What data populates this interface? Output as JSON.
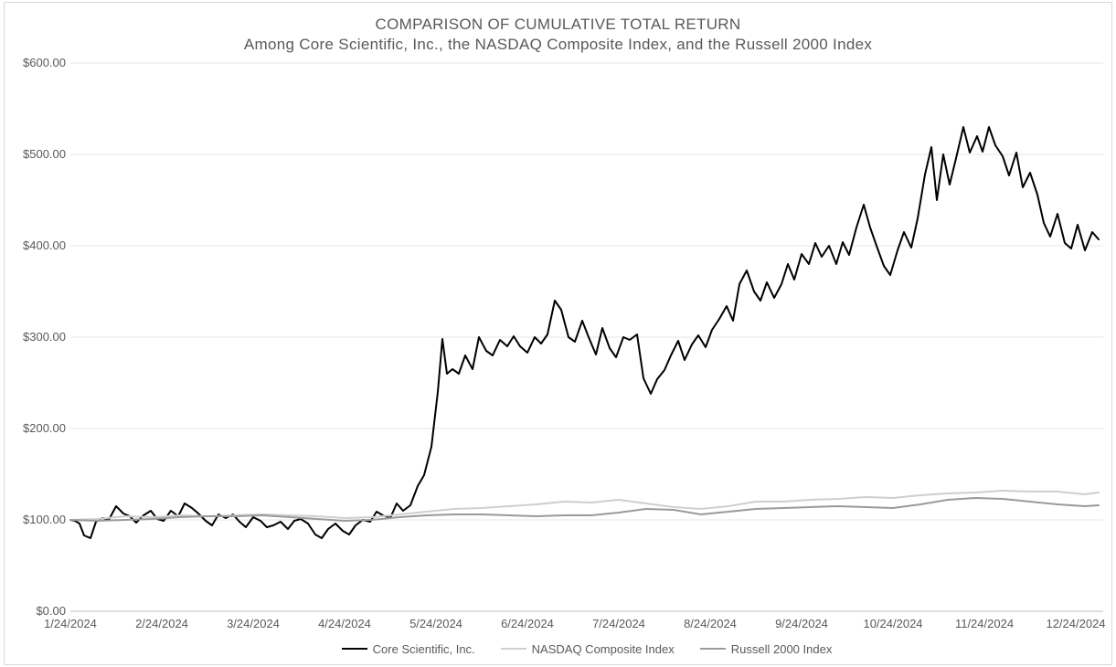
{
  "chart": {
    "type": "line",
    "title": "COMPARISON OF CUMULATIVE TOTAL RETURN",
    "subtitle": "Among Core Scientific, Inc., the NASDAQ Composite Index, and the Russell 2000 Index",
    "background_color": "#ffffff",
    "grid_color": "#e6e6e6",
    "axis_color": "#bfbfbf",
    "text_color": "#595959",
    "title_fontsize": 17,
    "label_fontsize": 13,
    "legend_fontsize": 13,
    "x": {
      "ticks": [
        "1/24/2024",
        "2/24/2024",
        "3/24/2024",
        "4/24/2024",
        "5/24/2024",
        "6/24/2024",
        "7/24/2024",
        "8/24/2024",
        "9/24/2024",
        "10/24/2024",
        "11/24/2024",
        "12/24/2024"
      ],
      "min_index": 0,
      "max_index": 11.3
    },
    "y": {
      "min": 0,
      "max": 600,
      "step": 100,
      "tick_format_prefix": "$",
      "tick_format_suffix": ".00",
      "ticks": [
        0,
        100,
        200,
        300,
        400,
        500,
        600
      ]
    },
    "series": [
      {
        "name": "Core Scientific, Inc.",
        "color": "#000000",
        "width": 2.0,
        "points": [
          [
            0.0,
            100
          ],
          [
            0.05,
            99
          ],
          [
            0.1,
            96
          ],
          [
            0.15,
            83
          ],
          [
            0.22,
            80
          ],
          [
            0.28,
            98
          ],
          [
            0.35,
            102
          ],
          [
            0.42,
            100
          ],
          [
            0.5,
            115
          ],
          [
            0.58,
            107
          ],
          [
            0.65,
            104
          ],
          [
            0.72,
            97
          ],
          [
            0.8,
            105
          ],
          [
            0.88,
            110
          ],
          [
            0.95,
            101
          ],
          [
            1.02,
            99
          ],
          [
            1.1,
            110
          ],
          [
            1.18,
            104
          ],
          [
            1.25,
            118
          ],
          [
            1.33,
            113
          ],
          [
            1.4,
            107
          ],
          [
            1.48,
            99
          ],
          [
            1.55,
            94
          ],
          [
            1.62,
            106
          ],
          [
            1.7,
            102
          ],
          [
            1.78,
            106
          ],
          [
            1.85,
            98
          ],
          [
            1.92,
            92
          ],
          [
            2.0,
            103
          ],
          [
            2.08,
            99
          ],
          [
            2.15,
            92
          ],
          [
            2.22,
            94
          ],
          [
            2.3,
            98
          ],
          [
            2.38,
            90
          ],
          [
            2.45,
            99
          ],
          [
            2.52,
            101
          ],
          [
            2.6,
            96
          ],
          [
            2.68,
            84
          ],
          [
            2.75,
            80
          ],
          [
            2.82,
            90
          ],
          [
            2.9,
            96
          ],
          [
            2.98,
            88
          ],
          [
            3.05,
            84
          ],
          [
            3.12,
            94
          ],
          [
            3.2,
            100
          ],
          [
            3.28,
            98
          ],
          [
            3.35,
            109
          ],
          [
            3.42,
            105
          ],
          [
            3.5,
            102
          ],
          [
            3.57,
            118
          ],
          [
            3.64,
            110
          ],
          [
            3.72,
            116
          ],
          [
            3.8,
            137
          ],
          [
            3.87,
            149
          ],
          [
            3.95,
            180
          ],
          [
            4.02,
            240
          ],
          [
            4.07,
            298
          ],
          [
            4.12,
            260
          ],
          [
            4.18,
            265
          ],
          [
            4.25,
            260
          ],
          [
            4.32,
            280
          ],
          [
            4.4,
            265
          ],
          [
            4.47,
            300
          ],
          [
            4.55,
            285
          ],
          [
            4.62,
            280
          ],
          [
            4.7,
            297
          ],
          [
            4.78,
            290
          ],
          [
            4.85,
            301
          ],
          [
            4.92,
            290
          ],
          [
            5.0,
            283
          ],
          [
            5.08,
            300
          ],
          [
            5.15,
            293
          ],
          [
            5.22,
            303
          ],
          [
            5.3,
            340
          ],
          [
            5.37,
            330
          ],
          [
            5.45,
            300
          ],
          [
            5.52,
            295
          ],
          [
            5.6,
            318
          ],
          [
            5.67,
            300
          ],
          [
            5.75,
            281
          ],
          [
            5.82,
            310
          ],
          [
            5.9,
            288
          ],
          [
            5.97,
            278
          ],
          [
            6.05,
            300
          ],
          [
            6.12,
            297
          ],
          [
            6.2,
            303
          ],
          [
            6.27,
            255
          ],
          [
            6.35,
            238
          ],
          [
            6.42,
            254
          ],
          [
            6.5,
            264
          ],
          [
            6.57,
            280
          ],
          [
            6.65,
            296
          ],
          [
            6.72,
            275
          ],
          [
            6.8,
            292
          ],
          [
            6.87,
            302
          ],
          [
            6.95,
            289
          ],
          [
            7.02,
            308
          ],
          [
            7.1,
            320
          ],
          [
            7.18,
            334
          ],
          [
            7.25,
            318
          ],
          [
            7.32,
            358
          ],
          [
            7.4,
            373
          ],
          [
            7.48,
            350
          ],
          [
            7.55,
            340
          ],
          [
            7.62,
            360
          ],
          [
            7.7,
            343
          ],
          [
            7.78,
            358
          ],
          [
            7.85,
            380
          ],
          [
            7.92,
            363
          ],
          [
            8.0,
            391
          ],
          [
            8.08,
            380
          ],
          [
            8.15,
            403
          ],
          [
            8.22,
            388
          ],
          [
            8.3,
            400
          ],
          [
            8.38,
            380
          ],
          [
            8.45,
            404
          ],
          [
            8.52,
            390
          ],
          [
            8.6,
            420
          ],
          [
            8.68,
            445
          ],
          [
            8.75,
            420
          ],
          [
            8.82,
            400
          ],
          [
            8.9,
            378
          ],
          [
            8.97,
            368
          ],
          [
            9.05,
            395
          ],
          [
            9.12,
            415
          ],
          [
            9.2,
            398
          ],
          [
            9.27,
            430
          ],
          [
            9.35,
            478
          ],
          [
            9.42,
            508
          ],
          [
            9.48,
            450
          ],
          [
            9.55,
            500
          ],
          [
            9.62,
            467
          ],
          [
            9.7,
            500
          ],
          [
            9.77,
            530
          ],
          [
            9.84,
            502
          ],
          [
            9.92,
            520
          ],
          [
            9.98,
            503
          ],
          [
            10.05,
            530
          ],
          [
            10.12,
            510
          ],
          [
            10.2,
            498
          ],
          [
            10.27,
            477
          ],
          [
            10.35,
            502
          ],
          [
            10.42,
            464
          ],
          [
            10.5,
            480
          ],
          [
            10.58,
            456
          ],
          [
            10.65,
            425
          ],
          [
            10.72,
            410
          ],
          [
            10.8,
            435
          ],
          [
            10.88,
            403
          ],
          [
            10.95,
            397
          ],
          [
            11.02,
            423
          ],
          [
            11.1,
            395
          ],
          [
            11.18,
            415
          ],
          [
            11.25,
            407
          ]
        ]
      },
      {
        "name": "NASDAQ Composite Index",
        "color": "#cfcfcf",
        "width": 2.0,
        "points": [
          [
            0.0,
            100
          ],
          [
            0.3,
            101
          ],
          [
            0.6,
            104
          ],
          [
            0.9,
            103
          ],
          [
            1.2,
            105
          ],
          [
            1.5,
            104
          ],
          [
            1.8,
            105
          ],
          [
            2.1,
            106
          ],
          [
            2.4,
            105
          ],
          [
            2.7,
            104
          ],
          [
            3.0,
            102
          ],
          [
            3.3,
            103
          ],
          [
            3.6,
            106
          ],
          [
            3.9,
            109
          ],
          [
            4.2,
            112
          ],
          [
            4.5,
            113
          ],
          [
            4.8,
            115
          ],
          [
            5.1,
            117
          ],
          [
            5.4,
            120
          ],
          [
            5.7,
            119
          ],
          [
            6.0,
            122
          ],
          [
            6.3,
            118
          ],
          [
            6.6,
            114
          ],
          [
            6.9,
            112
          ],
          [
            7.2,
            115
          ],
          [
            7.5,
            120
          ],
          [
            7.8,
            120
          ],
          [
            8.1,
            122
          ],
          [
            8.4,
            123
          ],
          [
            8.7,
            125
          ],
          [
            9.0,
            124
          ],
          [
            9.3,
            127
          ],
          [
            9.6,
            129
          ],
          [
            9.9,
            130
          ],
          [
            10.2,
            132
          ],
          [
            10.5,
            131
          ],
          [
            10.8,
            131
          ],
          [
            11.1,
            128
          ],
          [
            11.25,
            130
          ]
        ]
      },
      {
        "name": "Russell 2000 Index",
        "color": "#9a9a9a",
        "width": 2.0,
        "points": [
          [
            0.0,
            100
          ],
          [
            0.3,
            99
          ],
          [
            0.6,
            100
          ],
          [
            0.9,
            101
          ],
          [
            1.2,
            103
          ],
          [
            1.5,
            104
          ],
          [
            1.8,
            104
          ],
          [
            2.1,
            105
          ],
          [
            2.4,
            103
          ],
          [
            2.7,
            101
          ],
          [
            3.0,
            99
          ],
          [
            3.3,
            100
          ],
          [
            3.6,
            103
          ],
          [
            3.9,
            105
          ],
          [
            4.2,
            106
          ],
          [
            4.5,
            106
          ],
          [
            4.8,
            105
          ],
          [
            5.1,
            104
          ],
          [
            5.4,
            105
          ],
          [
            5.7,
            105
          ],
          [
            6.0,
            108
          ],
          [
            6.3,
            112
          ],
          [
            6.6,
            111
          ],
          [
            6.9,
            106
          ],
          [
            7.2,
            109
          ],
          [
            7.5,
            112
          ],
          [
            7.8,
            113
          ],
          [
            8.1,
            114
          ],
          [
            8.4,
            115
          ],
          [
            8.7,
            114
          ],
          [
            9.0,
            113
          ],
          [
            9.3,
            117
          ],
          [
            9.6,
            122
          ],
          [
            9.9,
            124
          ],
          [
            10.2,
            123
          ],
          [
            10.5,
            120
          ],
          [
            10.8,
            117
          ],
          [
            11.1,
            115
          ],
          [
            11.25,
            116
          ]
        ]
      }
    ]
  }
}
